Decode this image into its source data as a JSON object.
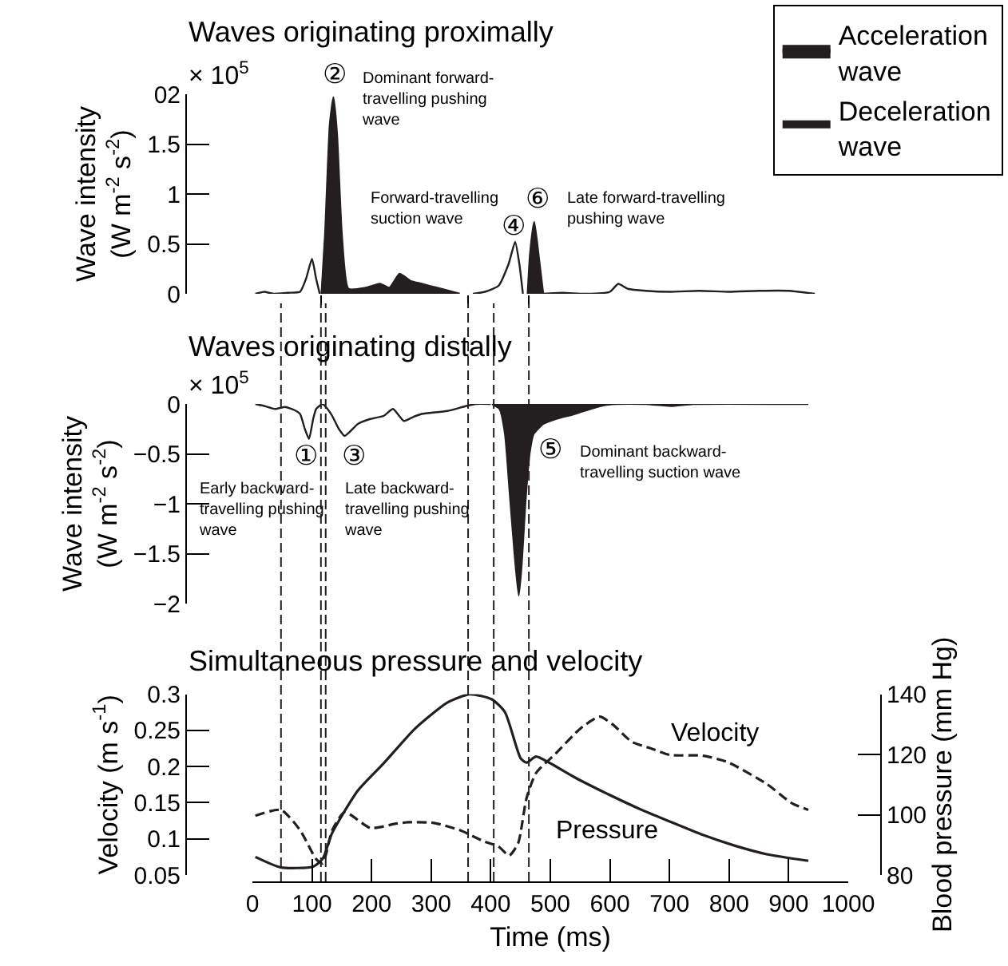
{
  "chart_data": [
    {
      "type": "area",
      "title": "Waves originating proximally",
      "ylabel": "Wave intensity\n(W m$^{-2}$ s$^{-2}$)",
      "xlim": [
        0,
        1000
      ],
      "xticks": [
        {
          "value": 115,
          "label": null
        },
        {
          "value": 362,
          "label": null
        },
        {
          "value": 464,
          "label": null
        }
      ],
      "ylim": [
        0,
        2
      ],
      "yticks": [
        0,
        0.5,
        1,
        1.5,
        {
          "value": 2,
          "label": "02"
        }
      ],
      "tick_labels": "y",
      "legend": "top right",
      "annotations": [
        "× 10$^{5}$",
        "②",
        "Dominant forward-\ntravelling pushing\nwave",
        "Forward-travelling\nsuction wave",
        "④",
        "⑥",
        "Late forward-travelling\npushing wave"
      ],
      "series": [
        {
          "name": "Acceleration\nwave",
          "color": "#231f20",
          "x": [
            116,
            122,
            130,
            136,
            142,
            150,
            161,
            190,
            214,
            230,
            247,
            265,
            284,
            310,
            348,
            400,
            462,
            466,
            473,
            480,
            488
          ],
          "values": [
            0,
            0.6,
            1.7,
            1.97,
            1.6,
            0.6,
            0.05,
            0.06,
            0.1,
            0.06,
            0.2,
            0.13,
            0.1,
            0.06,
            0,
            null,
            0,
            0.4,
            0.72,
            0.4,
            0
          ]
        },
        {
          "name": "Deceleration\nwave",
          "color": "#ffffff",
          "x": [
            5,
            20,
            35,
            60,
            80,
            90,
            100,
            107,
            113,
            240,
            370,
            390,
            413,
            430,
            441,
            448,
            454,
            470,
            488,
            520,
            560,
            600,
            614,
            630,
            660,
            700,
            750,
            800,
            850,
            900,
            944
          ],
          "values": [
            0,
            0.02,
            0,
            0.01,
            0.02,
            0.15,
            0.35,
            0.15,
            0,
            null,
            0,
            0.02,
            0.08,
            0.3,
            0.52,
            0.3,
            0,
            null,
            0,
            0.01,
            0,
            0.02,
            0.1,
            0.05,
            0.03,
            0.02,
            0.03,
            0.02,
            0.03,
            0.03,
            0
          ]
        }
      ]
    },
    {
      "type": "area",
      "title": "Waves originating distally",
      "ylabel": "Wave intensity\n(W m$^{-2}$ s$^{-2}$)",
      "xlim": [
        0,
        1000
      ],
      "ylim": [
        -2,
        0
      ],
      "yticks": [
        0,
        -0.5,
        -1,
        -1.5,
        -2
      ],
      "tick_labels": "y",
      "annotations": [
        "× 10$^{5}$",
        "①",
        "Early backward-\ntravelling pushing\nwave",
        "③",
        "Late backward-\ntravelling pushing\nwave",
        "⑤",
        "Dominant backward-\ntravelling suction wave"
      ],
      "ref_lines": [
        {
          "axis": "x",
          "value": 48,
          "line_style": "dashed",
          "color": "#231f20"
        },
        {
          "axis": "x",
          "value": 115,
          "line_style": "dashed",
          "color": "#231f20"
        },
        {
          "axis": "x",
          "value": 123,
          "line_style": "dashed",
          "color": "#231f20"
        },
        {
          "axis": "x",
          "value": 362,
          "line_style": "dashed",
          "color": "#231f20"
        },
        {
          "axis": "x",
          "value": 405,
          "line_style": "dashed",
          "color": "#231f20"
        },
        {
          "axis": "x",
          "value": 464,
          "line_style": "dashed",
          "color": "#231f20"
        }
      ],
      "series": [
        {
          "color": "#231f20",
          "x": [
            402,
            415,
            424,
            432,
            440,
            447,
            452,
            458,
            465,
            472,
            488,
            509,
            541,
            584,
            610,
            660,
            702,
            740,
            933
          ],
          "values": [
            0,
            -0.05,
            -0.3,
            -0.9,
            -1.5,
            -1.92,
            -1.6,
            -1.0,
            -0.5,
            -0.3,
            -0.2,
            -0.15,
            -0.1,
            -0.02,
            0,
            0,
            -0.02,
            0,
            0
          ]
        },
        {
          "color": "#ffffff",
          "x": [
            5,
            20,
            38,
            55,
            70,
            80,
            88,
            95,
            102,
            107,
            118,
            126,
            134,
            145,
            155,
            165,
            177,
            198,
            220,
            236,
            254,
            270,
            284,
            327,
            359,
            375,
            400
          ],
          "values": [
            0,
            -0.02,
            -0.05,
            -0.03,
            -0.06,
            -0.1,
            -0.25,
            -0.35,
            -0.15,
            -0.05,
            0,
            -0.05,
            -0.12,
            -0.25,
            -0.32,
            -0.27,
            -0.2,
            -0.15,
            -0.12,
            -0.05,
            -0.17,
            -0.13,
            -0.1,
            -0.07,
            -0.02,
            0,
            0
          ]
        }
      ]
    },
    {
      "type": "line",
      "title": "Simultaneous pressure and velocity",
      "xlabel": "Time (ms)",
      "ylabel": "Velocity (m s$^{-1}$)",
      "y2label": "Blood pressure (mm Hg)",
      "xlim": [
        0,
        1000
      ],
      "xticks": [
        0,
        100,
        200,
        300,
        400,
        500,
        600,
        700,
        800,
        900,
        1000
      ],
      "ylim": [
        0.05,
        0.3
      ],
      "yticks": [
        0.05,
        0.1,
        0.15,
        0.2,
        0.25,
        0.3
      ],
      "y2lim": [
        80,
        140
      ],
      "y2ticks": [
        80,
        100,
        120,
        140
      ],
      "annotations": [
        "Velocity",
        "Pressure"
      ],
      "ref_lines": [
        {
          "axis": "x",
          "value": 48,
          "line_style": "dashed",
          "color": "#231f20"
        },
        {
          "axis": "x",
          "value": 115,
          "line_style": "dashed",
          "color": "#231f20"
        },
        {
          "axis": "x",
          "value": 123,
          "line_style": "dashed",
          "color": "#231f20"
        },
        {
          "axis": "x",
          "value": 362,
          "line_style": "dashed",
          "color": "#231f20"
        },
        {
          "axis": "x",
          "value": 405,
          "line_style": "dashed",
          "color": "#231f20"
        },
        {
          "axis": "x",
          "value": 464,
          "line_style": "dashed",
          "color": "#231f20"
        }
      ],
      "series": [
        {
          "color": "#231f20",
          "line_style": "dashed",
          "x": [
            5,
            48,
            80,
            107,
            118,
            134,
            155,
            198,
            241,
            262,
            305,
            348,
            390,
            412,
            431,
            446,
            460,
            476,
            509,
            551,
            583,
            605,
            637,
            669,
            701,
            756,
            798,
            863,
            906,
            933
          ],
          "values": [
            0.132,
            0.14,
            0.112,
            0.072,
            0.066,
            0.112,
            0.137,
            0.115,
            0.121,
            0.123,
            0.122,
            0.112,
            0.096,
            0.09,
            0.077,
            0.094,
            0.156,
            0.191,
            0.218,
            0.253,
            0.269,
            0.258,
            0.234,
            0.225,
            0.216,
            0.215,
            0.206,
            0.176,
            0.149,
            0.14
          ]
        },
        {
          "color": "#231f20",
          "line_style": "solid",
          "axis": "y2",
          "x": [
            5,
            48,
            102,
            118,
            134,
            177,
            220,
            273,
            327,
            365,
            402,
            424,
            450,
            460,
            476,
            498,
            541,
            595,
            649,
            701,
            756,
            810,
            863,
            933
          ],
          "values": [
            86,
            82.5,
            82.8,
            85.4,
            94,
            108,
            117,
            128.6,
            137.2,
            140,
            138.3,
            134,
            118.8,
            117.3,
            119.3,
            117.3,
            112.4,
            107,
            102,
            97.7,
            93.3,
            89.7,
            86.9,
            84.7
          ]
        }
      ]
    }
  ]
}
